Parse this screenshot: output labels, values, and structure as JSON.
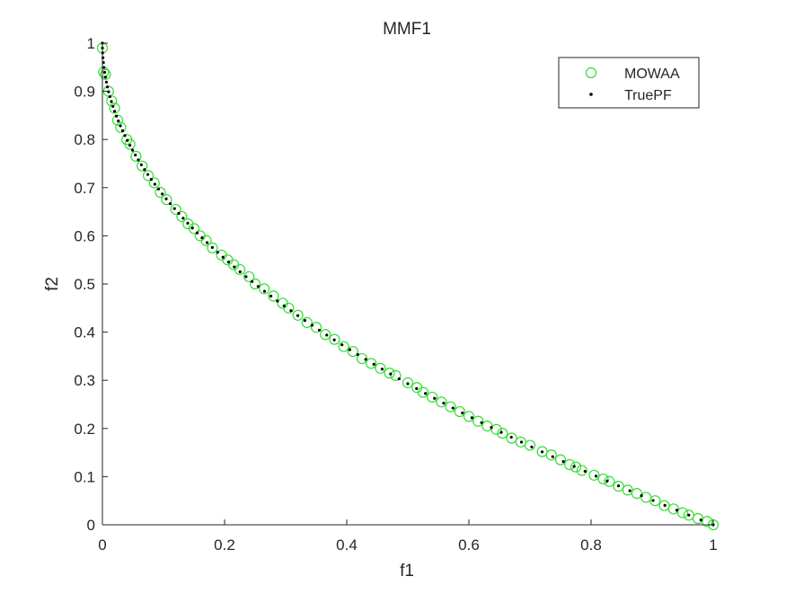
{
  "figure": {
    "background": "#ffffff"
  },
  "chart_data": {
    "type": "scatter",
    "title": "MMF1",
    "xlabel": "f1",
    "ylabel": "f2",
    "xlim": [
      0,
      1
    ],
    "ylim": [
      0,
      1
    ],
    "xticks": [
      0,
      0.2,
      0.4,
      0.6,
      0.8,
      1
    ],
    "yticks": [
      0,
      0.1,
      0.2,
      0.3,
      0.4,
      0.5,
      0.6,
      0.7,
      0.8,
      0.9,
      1
    ],
    "xtick_labels": [
      "0",
      "0.2",
      "0.4",
      "0.6",
      "0.8",
      "1"
    ],
    "ytick_labels": [
      "0",
      "0.1",
      "0.2",
      "0.3",
      "0.4",
      "0.5",
      "0.6",
      "0.7",
      "0.8",
      "0.9",
      "1"
    ],
    "grid": false,
    "legend_position": "top-right",
    "series": [
      {
        "name": "MOWAA",
        "marker": "open-circle",
        "color": "#33dd33",
        "points": [
          [
            0.0,
            0.99
          ],
          [
            0.002,
            0.94
          ],
          [
            0.005,
            0.935
          ],
          [
            0.01,
            0.9
          ],
          [
            0.015,
            0.88
          ],
          [
            0.02,
            0.865
          ],
          [
            0.025,
            0.84
          ],
          [
            0.03,
            0.825
          ],
          [
            0.04,
            0.8
          ],
          [
            0.045,
            0.79
          ],
          [
            0.055,
            0.765
          ],
          [
            0.065,
            0.745
          ],
          [
            0.075,
            0.725
          ],
          [
            0.085,
            0.71
          ],
          [
            0.095,
            0.69
          ],
          [
            0.105,
            0.675
          ],
          [
            0.12,
            0.655
          ],
          [
            0.13,
            0.64
          ],
          [
            0.14,
            0.625
          ],
          [
            0.15,
            0.615
          ],
          [
            0.16,
            0.6
          ],
          [
            0.17,
            0.59
          ],
          [
            0.18,
            0.575
          ],
          [
            0.195,
            0.56
          ],
          [
            0.205,
            0.55
          ],
          [
            0.215,
            0.54
          ],
          [
            0.225,
            0.53
          ],
          [
            0.24,
            0.515
          ],
          [
            0.25,
            0.5
          ],
          [
            0.265,
            0.49
          ],
          [
            0.28,
            0.475
          ],
          [
            0.295,
            0.46
          ],
          [
            0.305,
            0.45
          ],
          [
            0.32,
            0.435
          ],
          [
            0.335,
            0.42
          ],
          [
            0.35,
            0.41
          ],
          [
            0.365,
            0.395
          ],
          [
            0.38,
            0.385
          ],
          [
            0.395,
            0.37
          ],
          [
            0.41,
            0.36
          ],
          [
            0.425,
            0.345
          ],
          [
            0.44,
            0.335
          ],
          [
            0.455,
            0.325
          ],
          [
            0.47,
            0.315
          ],
          [
            0.48,
            0.31
          ],
          [
            0.5,
            0.295
          ],
          [
            0.515,
            0.285
          ],
          [
            0.525,
            0.275
          ],
          [
            0.54,
            0.265
          ],
          [
            0.555,
            0.255
          ],
          [
            0.57,
            0.245
          ],
          [
            0.585,
            0.235
          ],
          [
            0.6,
            0.225
          ],
          [
            0.615,
            0.215
          ],
          [
            0.63,
            0.205
          ],
          [
            0.645,
            0.198
          ],
          [
            0.655,
            0.19
          ],
          [
            0.67,
            0.18
          ],
          [
            0.685,
            0.172
          ],
          [
            0.7,
            0.165
          ],
          [
            0.72,
            0.152
          ],
          [
            0.735,
            0.145
          ],
          [
            0.75,
            0.135
          ],
          [
            0.765,
            0.125
          ],
          [
            0.775,
            0.12
          ],
          [
            0.785,
            0.113
          ],
          [
            0.805,
            0.103
          ],
          [
            0.82,
            0.095
          ],
          [
            0.83,
            0.09
          ],
          [
            0.845,
            0.08
          ],
          [
            0.86,
            0.072
          ],
          [
            0.875,
            0.065
          ],
          [
            0.89,
            0.057
          ],
          [
            0.905,
            0.05
          ],
          [
            0.92,
            0.04
          ],
          [
            0.935,
            0.033
          ],
          [
            0.95,
            0.025
          ],
          [
            0.96,
            0.02
          ],
          [
            0.975,
            0.013
          ],
          [
            0.99,
            0.007
          ],
          [
            1.0,
            0.0
          ]
        ]
      },
      {
        "name": "TruePF",
        "marker": "dot",
        "color": "#000000",
        "function": "f2 = 1 - sqrt(f1)",
        "n_points": 100
      }
    ]
  }
}
